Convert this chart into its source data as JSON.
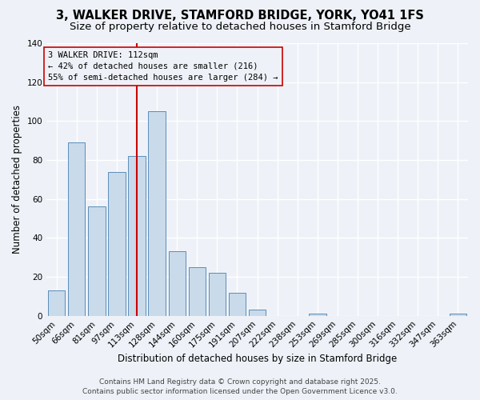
{
  "title": "3, WALKER DRIVE, STAMFORD BRIDGE, YORK, YO41 1FS",
  "subtitle": "Size of property relative to detached houses in Stamford Bridge",
  "xlabel": "Distribution of detached houses by size in Stamford Bridge",
  "ylabel": "Number of detached properties",
  "footer_line1": "Contains HM Land Registry data © Crown copyright and database right 2025.",
  "footer_line2": "Contains public sector information licensed under the Open Government Licence v3.0.",
  "bar_labels": [
    "50sqm",
    "66sqm",
    "81sqm",
    "97sqm",
    "113sqm",
    "128sqm",
    "144sqm",
    "160sqm",
    "175sqm",
    "191sqm",
    "207sqm",
    "222sqm",
    "238sqm",
    "253sqm",
    "269sqm",
    "285sqm",
    "300sqm",
    "316sqm",
    "332sqm",
    "347sqm",
    "363sqm"
  ],
  "bar_values": [
    13,
    89,
    56,
    74,
    82,
    105,
    33,
    25,
    22,
    12,
    3,
    0,
    0,
    1,
    0,
    0,
    0,
    0,
    0,
    0,
    1
  ],
  "bar_color": "#c9daea",
  "bar_edge_color": "#5b8db8",
  "vline_x_index": 4,
  "vline_color": "#cc0000",
  "annotation_line1": "3 WALKER DRIVE: 112sqm",
  "annotation_line2": "← 42% of detached houses are smaller (216)",
  "annotation_line3": "55% of semi-detached houses are larger (284) →",
  "ylim": [
    0,
    140
  ],
  "yticks": [
    0,
    20,
    40,
    60,
    80,
    100,
    120,
    140
  ],
  "background_color": "#eef2f8",
  "grid_color": "#ffffff",
  "title_fontsize": 10.5,
  "subtitle_fontsize": 9.5,
  "xlabel_fontsize": 8.5,
  "ylabel_fontsize": 8.5,
  "tick_fontsize": 7.5,
  "annotation_fontsize": 7.5,
  "footer_fontsize": 6.5
}
